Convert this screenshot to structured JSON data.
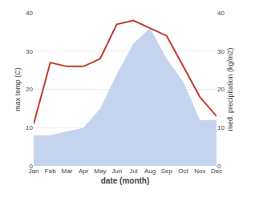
{
  "chart_data": {
    "type": "line",
    "categories": [
      "Jan",
      "Feb",
      "Mar",
      "Apr",
      "May",
      "Jun",
      "Jul",
      "Aug",
      "Sep",
      "Oct",
      "Nov",
      "Dec"
    ],
    "xlabel": "date (month)",
    "ylabel": "max temp (C)",
    "y2label": "med. precipitation (kg/m2)",
    "series": [
      {
        "type": "line",
        "color": "#c0392b",
        "values": [
          11,
          27,
          26,
          26,
          28,
          37,
          38,
          36,
          34,
          26,
          18,
          13
        ]
      },
      {
        "type": "area",
        "axis": "y2",
        "color": "#c5d4ee",
        "values": [
          8,
          8,
          9,
          10,
          15,
          24,
          32,
          36,
          28,
          22,
          12,
          12
        ]
      }
    ],
    "ylim": [
      0,
      40
    ],
    "yticks": [
      0,
      10,
      20,
      30,
      40
    ],
    "y2lim": [
      0,
      40
    ],
    "y2ticks": [
      0,
      10,
      20,
      30,
      40
    ],
    "grid": true
  }
}
